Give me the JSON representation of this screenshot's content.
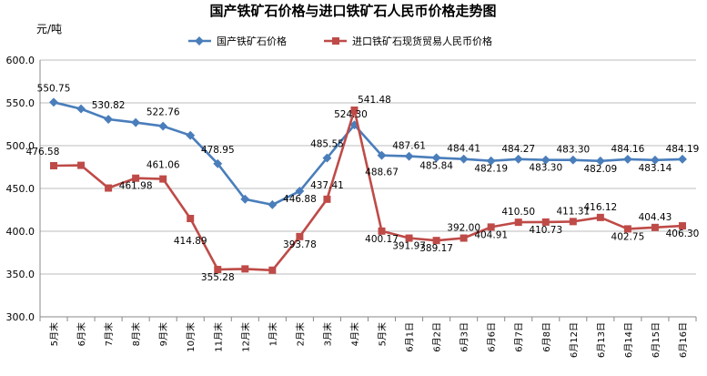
{
  "chart_data": {
    "type": "line",
    "title": "国产铁矿石价格与进口铁矿石人民币价格走势图",
    "ylabel": "元/吨",
    "xlabel": "",
    "ylim": [
      300,
      600
    ],
    "yticks": [
      "300.0",
      "350.0",
      "400.0",
      "450.0",
      "500.0",
      "550.0",
      "600.0"
    ],
    "grid": true,
    "legend_position": "top-right",
    "categories": [
      "5月末",
      "6月末",
      "7月末",
      "8月末",
      "9月末",
      "10月末",
      "11月末",
      "12月末",
      "1月末",
      "2月末",
      "3月末",
      "4月末",
      "5月末",
      "6月1日",
      "6月2日",
      "6月3日",
      "6月6日",
      "6月7日",
      "6月8日",
      "6月12日",
      "6月13日",
      "6月14日",
      "6月15日",
      "6月16日"
    ],
    "series": [
      {
        "name": "国产铁矿石价格",
        "color": "#4a7ebb",
        "marker": "diamond",
        "values": [
          550.75,
          543,
          530.82,
          527,
          522.76,
          512,
          478.95,
          437.5,
          431,
          446.88,
          485.55,
          524.3,
          488.67,
          487.61,
          485.84,
          484.41,
          482.19,
          484.27,
          483.3,
          483.3,
          482.09,
          484.16,
          483.14,
          484.19
        ],
        "labels": [
          "550.75",
          "",
          "530.82",
          "",
          "522.76",
          "",
          "478.95",
          "",
          "",
          "446.88",
          "485.55",
          "524.30",
          "488.67",
          "487.61",
          "485.84",
          "484.41",
          "482.19",
          "484.27",
          "483.30",
          "483.30",
          "482.09",
          "484.16",
          "483.14",
          "484.19"
        ]
      },
      {
        "name": "进口铁矿石现货贸易人民币价格",
        "color": "#be4b48",
        "marker": "square",
        "values": [
          476.58,
          477,
          450.5,
          461.98,
          461.06,
          414.89,
          355.28,
          356,
          354.5,
          393.78,
          437.41,
          541.48,
          400.17,
          391.97,
          389.17,
          392.0,
          404.91,
          410.5,
          410.73,
          411.31,
          416.12,
          402.75,
          404.43,
          406.3
        ],
        "labels": [
          "476.58",
          "",
          "",
          "461.98",
          "461.06",
          "414.89",
          "355.28",
          "",
          "",
          "393.78",
          "437.41",
          "541.48",
          "400.17",
          "391.97",
          "389.17",
          "392.00",
          "404.91",
          "410.50",
          "410.73",
          "411.31",
          "416.12",
          "402.75",
          "404.43",
          "406.30"
        ]
      }
    ]
  }
}
